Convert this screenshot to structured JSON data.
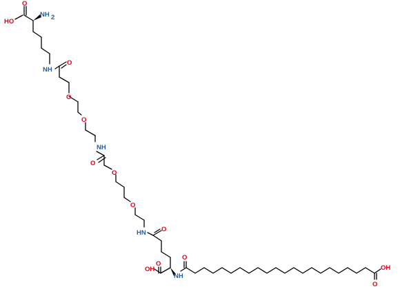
{
  "molecule": {
    "labels": {
      "lys_oh": "HO",
      "lys_nh2": "NH",
      "lys_nh2_sub": "2",
      "nh_1": "NH",
      "o_carbonyl_1": "O",
      "o_ether_1": "O",
      "o_ether_2": "O",
      "nh_2": "NH",
      "o_carbonyl_2": "O",
      "o_ether_3": "O",
      "o_ether_4": "O",
      "hn_3": "HN",
      "o_carbonyl_3": "O",
      "glu_oh": "OH",
      "glu_nh": "NH",
      "o_carbonyl_4": "O",
      "term_oh": "OH",
      "term_o": "O"
    },
    "colors": {
      "bond": "#000000",
      "oxygen": "#e3001b",
      "nitrogen": "#1f5fa8"
    }
  }
}
